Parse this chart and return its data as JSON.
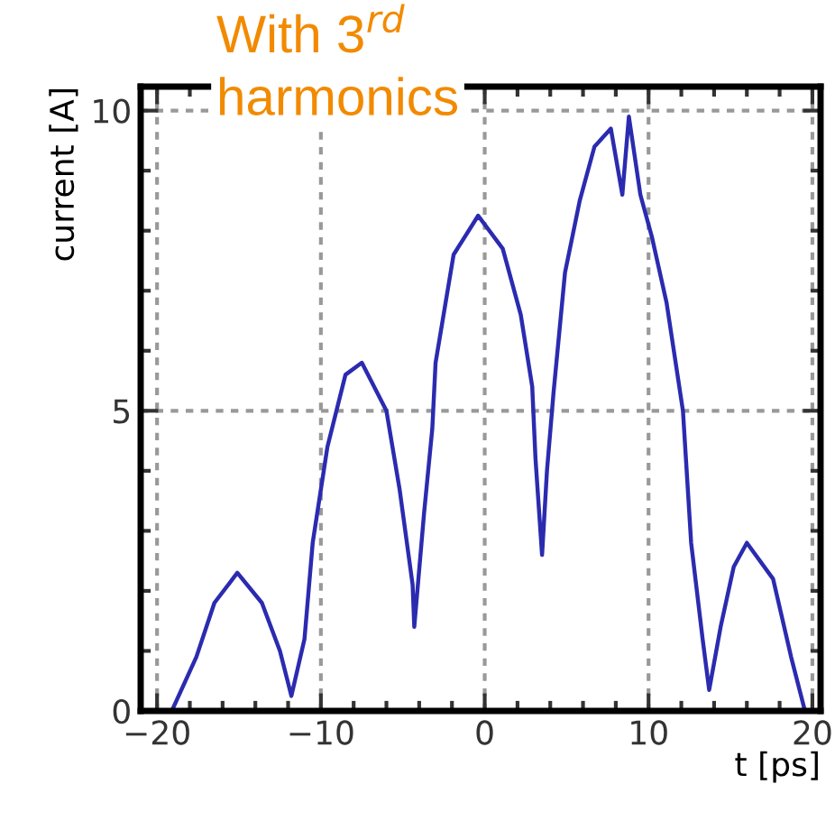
{
  "chart_data": {
    "type": "line",
    "title": "With 3$^{rd}$\nharmonics",
    "xlabel": "t [ps]",
    "ylabel": "current [A]",
    "x": [
      -19.1,
      -17.6,
      -16.5,
      -15.1,
      -13.6,
      -12.5,
      -11.8,
      -11.0,
      -10.5,
      -9.6,
      -8.5,
      -7.5,
      -6.0,
      -5.2,
      -4.4,
      -4.3,
      -3.7,
      -3.2,
      -3.0,
      -1.9,
      -0.4,
      1.1,
      2.2,
      2.9,
      3.1,
      3.5,
      3.8,
      4.2,
      4.9,
      5.8,
      6.7,
      7.7,
      8.4,
      8.8,
      9.5,
      10.2,
      11.1,
      12.1,
      12.6,
      13.3,
      13.7,
      14.4,
      15.2,
      16.0,
      17.6,
      18.7,
      19.5
    ],
    "series": [
      {
        "color": "#2b2bb0",
        "values": [
          0,
          0.9,
          1.8,
          2.3,
          1.8,
          1.0,
          0.25,
          1.2,
          2.8,
          4.4,
          5.6,
          5.8,
          5.0,
          3.7,
          2.1,
          1.4,
          3.3,
          4.7,
          5.8,
          7.6,
          8.25,
          7.7,
          6.6,
          5.4,
          4.2,
          2.6,
          4.0,
          5.3,
          7.3,
          8.5,
          9.4,
          9.7,
          8.6,
          9.9,
          8.6,
          7.9,
          6.8,
          5.0,
          2.8,
          1.2,
          0.35,
          1.4,
          2.4,
          2.8,
          2.2,
          0.9,
          0.05
        ]
      }
    ],
    "xlim": [
      -21,
      20.5
    ],
    "ylim": [
      0,
      10.4
    ],
    "xticks": [
      {
        "value": -20,
        "label": "−20"
      },
      {
        "value": -10,
        "label": "−10"
      },
      0,
      10,
      20
    ],
    "yticks": [
      0,
      5,
      10
    ],
    "grid": true,
    "marker": "none",
    "line_style": "solid",
    "legend": false
  }
}
